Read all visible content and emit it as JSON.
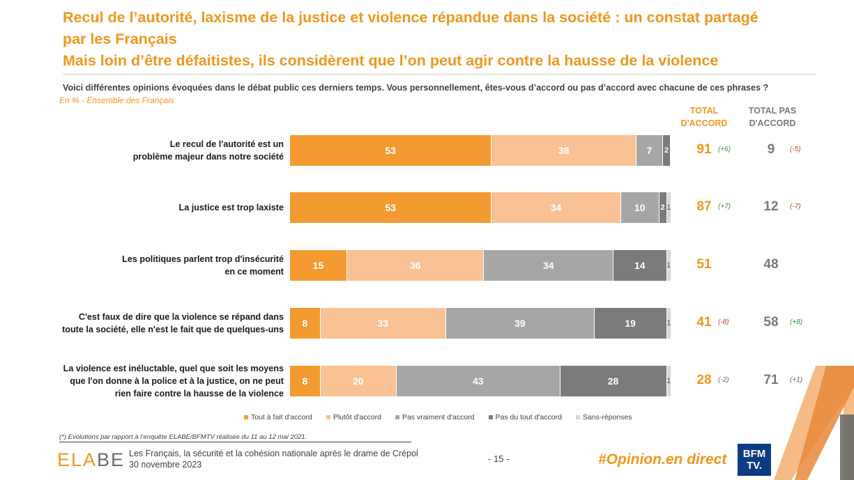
{
  "title": {
    "line1": "Recul de l’autorité, laxisme de la justice et violence répandue dans la société : un constat partagé",
    "line2": "par les Français",
    "line3": "Mais loin d’être défaitistes, ils considèrent que l’on peut agir contre la hausse de la violence"
  },
  "question": "Voici différentes opinions évoquées dans le débat public ces derniers temps. Vous personnellement, êtes-vous d’accord ou pas d’accord avec chacune de ces phrases ?",
  "subtitle": "En % - Ensemble des Français",
  "columns": {
    "total_accord": "TOTAL\nD'ACCORD",
    "total_pas_accord": "TOTAL PAS\nD'ACCORD"
  },
  "chart_data": {
    "type": "bar",
    "orientation": "horizontal-stacked-100",
    "series_names": [
      "Tout à fait d'accord",
      "Plutôt d'accord",
      "Pas vraiment d'accord",
      "Pas du tout d'accord",
      "Sans-réponses"
    ],
    "colors": [
      "#f39a30",
      "#f8c294",
      "#a6a6a6",
      "#7b7b7b",
      "#d8d8d8"
    ],
    "rows": [
      {
        "label": "Le recul de l'autorité est un\nproblème majeur dans notre société",
        "values": [
          53,
          38,
          7,
          2,
          0
        ],
        "labels": [
          "53",
          "38",
          "7",
          "2",
          ""
        ],
        "total_accord": "91",
        "evol_accord": "(+6)",
        "evol_accord_sign": "pos",
        "total_pas": "9",
        "evol_pas": "(-5)",
        "evol_pas_sign": "neg"
      },
      {
        "label": "La justice est trop laxiste",
        "values": [
          53,
          34,
          10,
          2,
          1
        ],
        "labels": [
          "53",
          "34",
          "10",
          "2",
          "1"
        ],
        "total_accord": "87",
        "evol_accord": "(+7)",
        "evol_accord_sign": "pos",
        "total_pas": "12",
        "evol_pas": "(-7)",
        "evol_pas_sign": "neg"
      },
      {
        "label": "Les politiques parlent trop d'insécurité\nen ce moment",
        "values": [
          15,
          36,
          34,
          14,
          1
        ],
        "labels": [
          "15",
          "36",
          "34",
          "14",
          "1"
        ],
        "total_accord": "51",
        "evol_accord": "",
        "evol_accord_sign": "neu",
        "total_pas": "48",
        "evol_pas": "",
        "evol_pas_sign": "neu"
      },
      {
        "label": "C'est faux de dire que la violence se répand dans\ntoute la société, elle n'est le fait que de quelques-uns",
        "values": [
          8,
          33,
          39,
          19,
          1
        ],
        "labels": [
          "8",
          "33",
          "39",
          "19",
          "1"
        ],
        "total_accord": "41",
        "evol_accord": "(-8)",
        "evol_accord_sign": "neg",
        "total_pas": "58",
        "evol_pas": "(+8)",
        "evol_pas_sign": "pos"
      },
      {
        "label": "La violence est inéluctable, quel que soit les moyens\nque l'on donne à la police et à la justice, on ne peut\nrien faire contre la hausse de la violence",
        "values": [
          8,
          20,
          43,
          28,
          1
        ],
        "labels": [
          "8",
          "20",
          "43",
          "28",
          "1"
        ],
        "total_accord": "28",
        "evol_accord": "(-2)",
        "evol_accord_sign": "neu",
        "total_pas": "71",
        "evol_pas": "(+1)",
        "evol_pas_sign": "neu"
      }
    ]
  },
  "footnote": "(*) Evolutions par rapport à l’enquête ELABE/BFMTV réalisée du 11 au 12 mai 2021.",
  "footer": {
    "logo_orange": "ELA",
    "logo_grey": "BE",
    "line1": "Les Français, la sécurité et la cohésion nationale après le drame de Crépol",
    "line2": "30 novembre 2023",
    "page": "- 15 -",
    "hashtag": "#Opinion.en direct",
    "bfm_line1": "BFM",
    "bfm_line2": "TV."
  }
}
